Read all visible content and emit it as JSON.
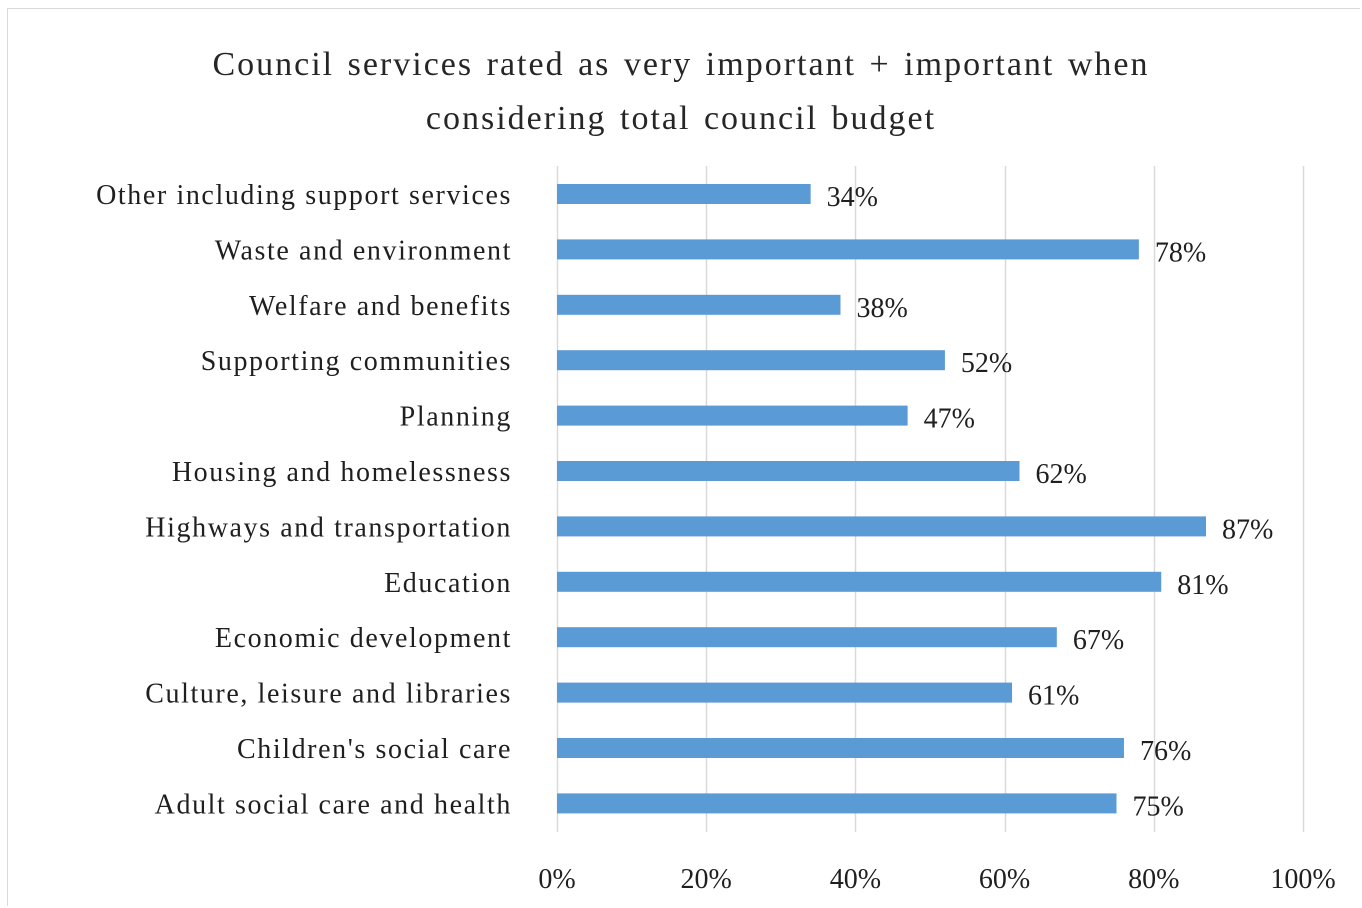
{
  "chart_data": {
    "type": "bar",
    "orientation": "horizontal",
    "title": "Council services rated as very important + important when considering total council budget",
    "title_lines": [
      "Council services rated as very important + important when",
      "considering total council budget"
    ],
    "categories": [
      "Other including support services",
      "Waste and environment",
      "Welfare and benefits",
      "Supporting communities",
      "Planning",
      "Housing and homelessness",
      "Highways and transportation",
      "Education",
      "Economic development",
      "Culture, leisure and libraries",
      "Children's social care",
      "Adult social care and health"
    ],
    "values": [
      34,
      78,
      38,
      52,
      47,
      62,
      87,
      81,
      67,
      61,
      76,
      75
    ],
    "value_labels": [
      "34%",
      "78%",
      "38%",
      "52%",
      "47%",
      "62%",
      "87%",
      "81%",
      "67%",
      "61%",
      "76%",
      "75%"
    ],
    "xlim": [
      0,
      100
    ],
    "x_ticks": [
      0,
      20,
      40,
      60,
      80,
      100
    ],
    "x_tick_labels": [
      "0%",
      "20%",
      "40%",
      "60%",
      "80%",
      "100%"
    ],
    "xlabel": "",
    "ylabel": "",
    "grid": "vertical",
    "legend": "none",
    "colors": {
      "bar": "#5b9bd5",
      "grid": "#d9d9d9",
      "text": "#1f1f1f"
    }
  }
}
